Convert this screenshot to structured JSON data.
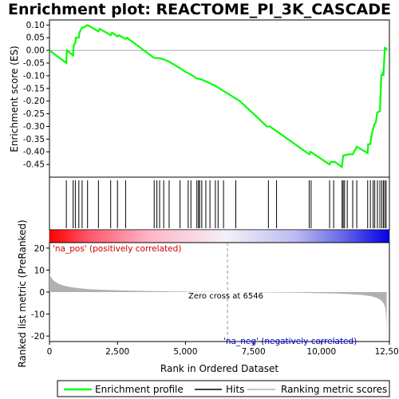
{
  "title": "Enrichment plot: REACTOME_PI_3K_CASCADE",
  "colors": {
    "profile": "#00ff00",
    "hits": "#000000",
    "metric_fill": "#b0b0b0",
    "pos_label": "#cc0000",
    "neg_label": "#0000cc",
    "zero_line": "#999999"
  },
  "annotations": {
    "pos": "'na_pos' (positively correlated)",
    "neg": "'na_neg' (negatively correlated)",
    "zero": "Zero cross at 6546"
  },
  "legend": {
    "profile": "Enrichment profile",
    "hits": "Hits",
    "metric": "Ranking metric scores"
  },
  "chart_data": [
    {
      "type": "line",
      "name": "enrichment-profile",
      "ylabel": "Enrichment score (ES)",
      "xlim": [
        0,
        12500
      ],
      "ylim": [
        -0.5,
        0.12
      ],
      "yticks": [
        0.1,
        0.05,
        0.0,
        -0.05,
        -0.1,
        -0.15,
        -0.2,
        -0.25,
        -0.3,
        -0.35,
        -0.4,
        -0.45
      ],
      "ytick_labels": [
        "0.10",
        "0.05",
        "0.00",
        "-0.05",
        "-0.10",
        "-0.15",
        "-0.20",
        "-0.25",
        "-0.30",
        "-0.35",
        "-0.40",
        "-0.45"
      ],
      "points": [
        [
          0,
          0.0
        ],
        [
          620,
          -0.05
        ],
        [
          640,
          0.0
        ],
        [
          870,
          -0.02
        ],
        [
          890,
          0.02
        ],
        [
          950,
          0.03
        ],
        [
          970,
          0.05
        ],
        [
          1080,
          0.05
        ],
        [
          1100,
          0.07
        ],
        [
          1200,
          0.09
        ],
        [
          1250,
          0.09
        ],
        [
          1400,
          0.1
        ],
        [
          1800,
          0.075
        ],
        [
          1850,
          0.085
        ],
        [
          2250,
          0.06
        ],
        [
          2300,
          0.07
        ],
        [
          2500,
          0.055
        ],
        [
          2550,
          0.06
        ],
        [
          2800,
          0.045
        ],
        [
          2850,
          0.05
        ],
        [
          3850,
          -0.03
        ],
        [
          4000,
          -0.03
        ],
        [
          4200,
          -0.035
        ],
        [
          4400,
          -0.045
        ],
        [
          4800,
          -0.07
        ],
        [
          5000,
          -0.085
        ],
        [
          5200,
          -0.095
        ],
        [
          5400,
          -0.11
        ],
        [
          5600,
          -0.115
        ],
        [
          5800,
          -0.125
        ],
        [
          6100,
          -0.14
        ],
        [
          6400,
          -0.16
        ],
        [
          6546,
          -0.17
        ],
        [
          7000,
          -0.2
        ],
        [
          8000,
          -0.3
        ],
        [
          8100,
          -0.3
        ],
        [
          8300,
          -0.315
        ],
        [
          9550,
          -0.41
        ],
        [
          9600,
          -0.4
        ],
        [
          10300,
          -0.45
        ],
        [
          10350,
          -0.44
        ],
        [
          10500,
          -0.44
        ],
        [
          10750,
          -0.46
        ],
        [
          10800,
          -0.415
        ],
        [
          11000,
          -0.41
        ],
        [
          11150,
          -0.41
        ],
        [
          11300,
          -0.38
        ],
        [
          11700,
          -0.405
        ],
        [
          11720,
          -0.37
        ],
        [
          11800,
          -0.37
        ],
        [
          11850,
          -0.33
        ],
        [
          11950,
          -0.29
        ],
        [
          12000,
          -0.285
        ],
        [
          12050,
          -0.245
        ],
        [
          12150,
          -0.24
        ],
        [
          12170,
          -0.18
        ],
        [
          12200,
          -0.1
        ],
        [
          12250,
          -0.09
        ],
        [
          12280,
          -0.1
        ],
        [
          12330,
          0.01
        ],
        [
          12420,
          0.005
        ]
      ]
    },
    {
      "type": "bar",
      "name": "hits",
      "x": [
        620,
        870,
        950,
        1080,
        1200,
        1400,
        1800,
        2250,
        2500,
        2800,
        3850,
        3950,
        4050,
        4200,
        4400,
        4800,
        5100,
        5200,
        5420,
        5480,
        5520,
        5600,
        5750,
        5900,
        6100,
        6200,
        6400,
        6850,
        8050,
        8350,
        9550,
        9620,
        10300,
        10450,
        10760,
        10800,
        10850,
        10950,
        11150,
        11300,
        11700,
        11800,
        11900,
        11960,
        12060,
        12150,
        12220,
        12280,
        12330,
        12380
      ]
    },
    {
      "type": "area",
      "name": "ranking-metric",
      "xlabel": "Rank in Ordered Dataset",
      "ylabel": "Ranked list metric (PreRanked)",
      "xlim": [
        0,
        12500
      ],
      "ylim": [
        -22.5,
        22.5
      ],
      "xticks": [
        0,
        2500,
        5000,
        7500,
        10000,
        12500
      ],
      "xtick_labels": [
        "0",
        "2,500",
        "5,000",
        "7,500",
        "10,000",
        "12,500"
      ],
      "yticks": [
        20,
        10,
        0,
        -10,
        -20
      ],
      "ytick_labels": [
        "20",
        "10",
        "0",
        "-10",
        "-20"
      ],
      "zero_cross": 6546,
      "points": [
        [
          0,
          8.5
        ],
        [
          50,
          6.8
        ],
        [
          150,
          5.2
        ],
        [
          300,
          4.0
        ],
        [
          500,
          3.0
        ],
        [
          800,
          2.2
        ],
        [
          1200,
          1.6
        ],
        [
          1600,
          1.2
        ],
        [
          2000,
          1.0
        ],
        [
          2500,
          0.8
        ],
        [
          3000,
          0.6
        ],
        [
          3500,
          0.5
        ],
        [
          4000,
          0.4
        ],
        [
          4500,
          0.3
        ],
        [
          5000,
          0.2
        ],
        [
          5500,
          0.12
        ],
        [
          6000,
          0.06
        ],
        [
          6546,
          0.0
        ],
        [
          7000,
          -0.05
        ],
        [
          7500,
          -0.1
        ],
        [
          8000,
          -0.15
        ],
        [
          8500,
          -0.2
        ],
        [
          9000,
          -0.3
        ],
        [
          9500,
          -0.4
        ],
        [
          10000,
          -0.5
        ],
        [
          10500,
          -0.65
        ],
        [
          11000,
          -0.9
        ],
        [
          11500,
          -1.3
        ],
        [
          11800,
          -1.8
        ],
        [
          12000,
          -2.5
        ],
        [
          12150,
          -3.3
        ],
        [
          12250,
          -4.5
        ],
        [
          12320,
          -6.0
        ],
        [
          12360,
          -8.0
        ],
        [
          12390,
          -14.0
        ],
        [
          12400,
          -21.0
        ]
      ]
    }
  ]
}
